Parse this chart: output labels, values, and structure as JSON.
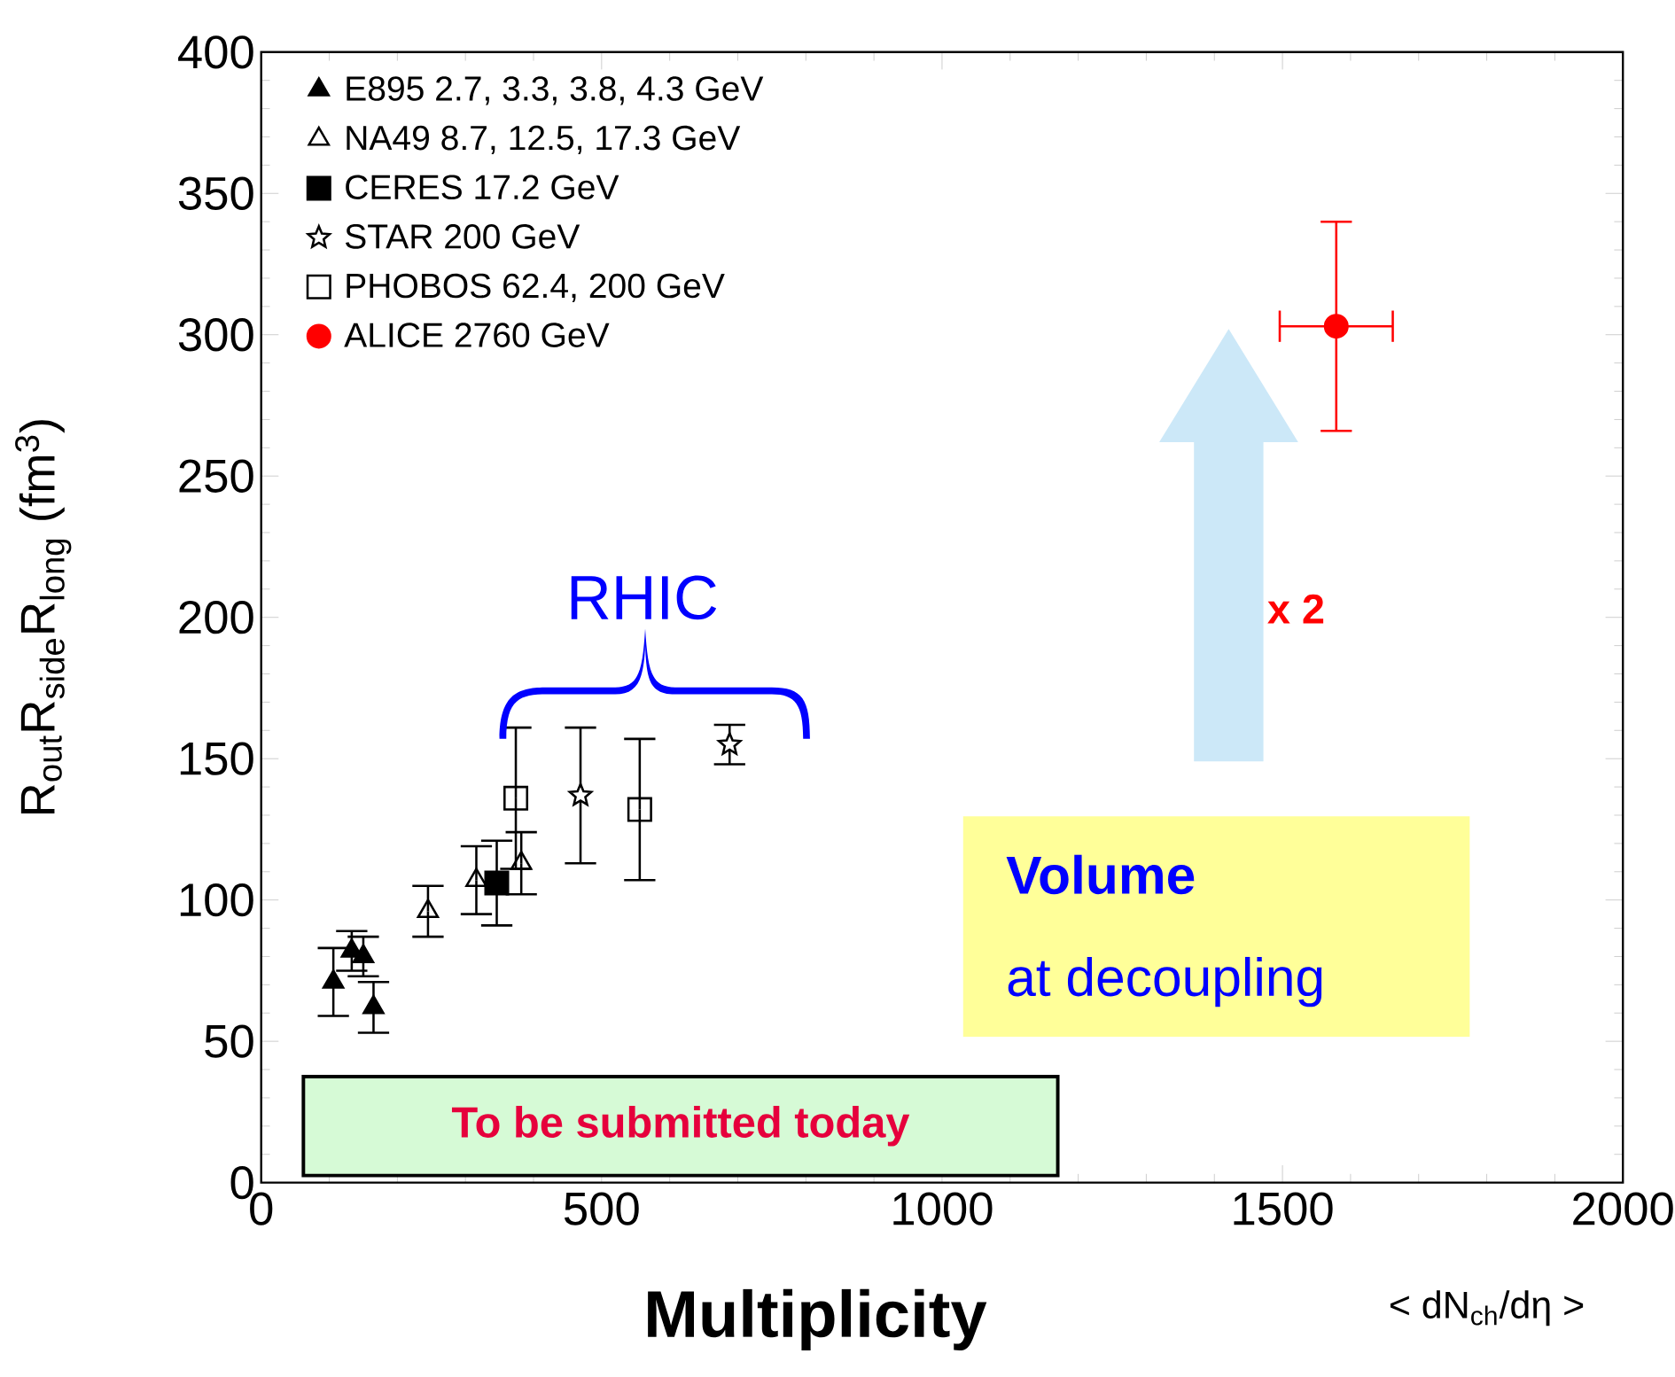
{
  "chart_data": {
    "type": "scatter",
    "xlabel": "< dN$_{ch}$/dη >",
    "ylabel": "R$_{out}$R$_{side}$R$_{long}$ (fm$^{3}$)",
    "xlim": [
      0,
      2000
    ],
    "ylim": [
      0,
      400
    ],
    "xticks": [
      0,
      500,
      1000,
      1500,
      2000
    ],
    "yticks": [
      0,
      50,
      100,
      150,
      200,
      250,
      300,
      350,
      400
    ],
    "grid": false,
    "legend": "top left",
    "series": [
      {
        "name": "E895 2.7, 3.3, 3.8, 4.3 GeV",
        "color": "#000000",
        "marker": "triangle",
        "x": [
          106,
          133,
          150,
          165
        ],
        "values": [
          71,
          82,
          80,
          62
        ],
        "errors": [
          12,
          7,
          7,
          9
        ]
      },
      {
        "name": "NA49 8.7, 12.5, 17.3 GeV",
        "color": "#000000",
        "marker": "triangle-open",
        "x": [
          245,
          316,
          382
        ],
        "values": [
          96,
          107,
          113
        ],
        "errors": [
          9,
          12,
          11
        ]
      },
      {
        "name": "CERES 17.2 GeV",
        "color": "#000000",
        "marker": "square",
        "x": [
          346
        ],
        "values": [
          106
        ],
        "errors": [
          15
        ]
      },
      {
        "name": "STAR 200 GeV",
        "color": "#000000",
        "marker": "star",
        "x": [
          469,
          688
        ],
        "values": [
          137,
          155
        ],
        "errors": [
          24,
          7
        ]
      },
      {
        "name": "PHOBOS 62.4, 200 GeV",
        "color": "#000000",
        "marker": "square-open",
        "x": [
          374,
          556
        ],
        "values": [
          136,
          132
        ],
        "errors": [
          25,
          25
        ]
      },
      {
        "name": "ALICE 2760 GeV",
        "color": "#ff0000",
        "marker": "circle",
        "x": [
          1579
        ],
        "values": [
          303
        ],
        "errors": [
          37
        ],
        "xerrors": [
          83
        ]
      }
    ],
    "annotations": [
      "RHIC",
      "x 2",
      "Volume",
      "at decoupling",
      "To be submitted today",
      "Multiplicity"
    ]
  }
}
